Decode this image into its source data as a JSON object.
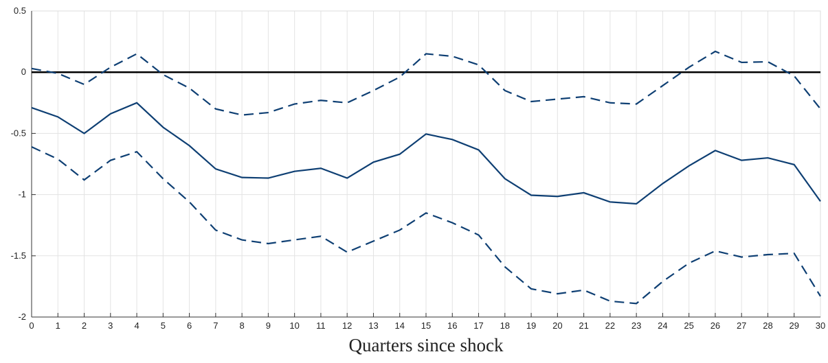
{
  "chart_data": {
    "type": "line",
    "x_label": "Quarters since shock",
    "x": [
      0,
      1,
      2,
      3,
      4,
      5,
      6,
      7,
      8,
      9,
      10,
      11,
      12,
      13,
      14,
      15,
      16,
      17,
      18,
      19,
      20,
      21,
      22,
      23,
      24,
      25,
      26,
      27,
      28,
      29,
      30
    ],
    "series": [
      {
        "color": "#0e3f73",
        "dash": false,
        "values": [
          -0.29,
          -0.365,
          -0.5,
          -0.34,
          -0.25,
          -0.45,
          -0.6,
          -0.79,
          -0.86,
          -0.865,
          -0.81,
          -0.785,
          -0.865,
          -0.735,
          -0.67,
          -0.505,
          -0.55,
          -0.635,
          -0.87,
          -1.005,
          -1.015,
          -0.985,
          -1.06,
          -1.075,
          -0.91,
          -0.765,
          -0.64,
          -0.72,
          -0.7,
          -0.755,
          -1.055
        ]
      },
      {
        "color": "#0e3f73",
        "dash": true,
        "values": [
          0.03,
          -0.01,
          -0.1,
          0.04,
          0.15,
          -0.02,
          -0.13,
          -0.3,
          -0.35,
          -0.33,
          -0.26,
          -0.23,
          -0.25,
          -0.15,
          -0.04,
          0.15,
          0.13,
          0.06,
          -0.15,
          -0.24,
          -0.22,
          -0.2,
          -0.25,
          -0.26,
          -0.11,
          0.04,
          0.17,
          0.08,
          0.085,
          -0.03,
          -0.3
        ]
      },
      {
        "color": "#0e3f73",
        "dash": true,
        "values": [
          -0.61,
          -0.71,
          -0.88,
          -0.72,
          -0.65,
          -0.87,
          -1.06,
          -1.29,
          -1.37,
          -1.4,
          -1.37,
          -1.34,
          -1.47,
          -1.38,
          -1.29,
          -1.15,
          -1.23,
          -1.33,
          -1.59,
          -1.77,
          -1.81,
          -1.78,
          -1.87,
          -1.89,
          -1.71,
          -1.56,
          -1.46,
          -1.51,
          -1.49,
          -1.48,
          -1.83
        ]
      }
    ],
    "hline": 0,
    "xlim": [
      0,
      30
    ],
    "xticks": [
      0,
      1,
      2,
      3,
      4,
      5,
      6,
      7,
      8,
      9,
      10,
      11,
      12,
      13,
      14,
      15,
      16,
      17,
      18,
      19,
      20,
      21,
      22,
      23,
      24,
      25,
      26,
      27,
      28,
      29,
      30
    ],
    "ylim": [
      -2,
      0.5
    ],
    "yticks": [
      -2,
      -1.5,
      -1,
      -0.5,
      0,
      0.5
    ],
    "grid": true
  }
}
